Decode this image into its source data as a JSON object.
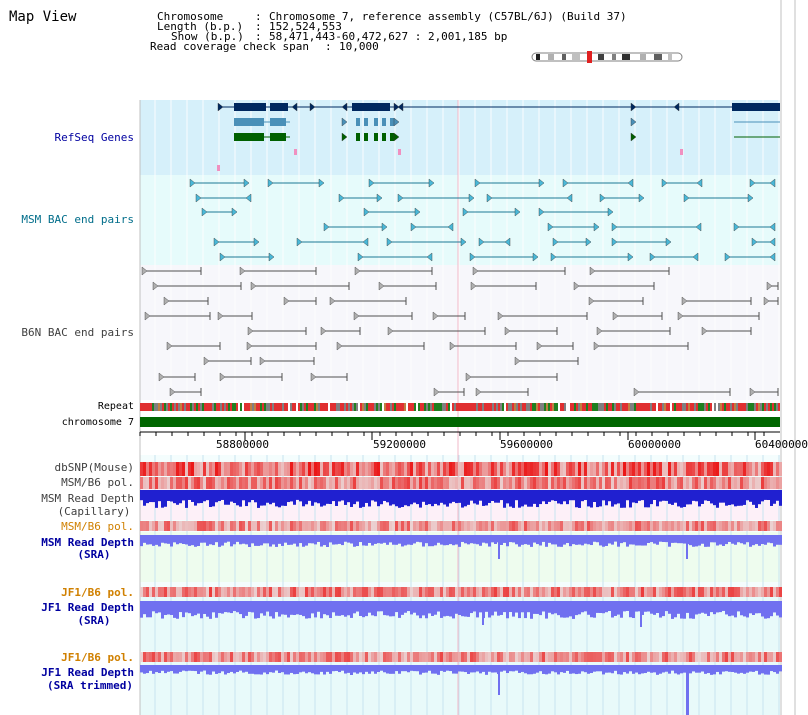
{
  "title": "Map View",
  "info": {
    "chromosome_label": "Chromosome",
    "chromosome_value": "Chromosome 7, reference assembly (C57BL/6J) (Build 37)",
    "length_label": "Length (b.p.)",
    "length_value": "152,524,553",
    "show_label": "Show (b.p.)",
    "show_value": "58,471,443-60,472,627 : 2,001,185 bp",
    "coverage_label": "Read coverage check span",
    "coverage_value": "10,000"
  },
  "tracks": {
    "refseq": "RefSeq Genes",
    "msm_bac": "MSM BAC end pairs",
    "b6n_bac": "B6N BAC end pairs",
    "repeat": "Repeat",
    "chromosome": "chromosome 7",
    "dbsnp": "dbSNP(Mouse)",
    "msm_b6_pol_1": "MSM/B6 pol.",
    "msm_depth_cap_1": "MSM Read Depth",
    "msm_depth_cap_2": "(Capillary)",
    "msm_b6_pol_2": "MSM/B6 pol.",
    "msm_depth_sra_1": "MSM Read Depth",
    "msm_depth_sra_2": "(SRA)",
    "jf1_b6_pol_1": "JF1/B6 pol.",
    "jf1_depth_sra_1": "JF1 Read Depth",
    "jf1_depth_sra_2": "(SRA)",
    "jf1_b6_pol_2": "JF1/B6 pol.",
    "jf1_depth_trim_1": "JF1 Read Depth",
    "jf1_depth_trim_2": "(SRA trimmed)"
  },
  "axis": {
    "ticks": [
      "58800000",
      "59200000",
      "59600000",
      "60000000",
      "60400000"
    ]
  },
  "colors": {
    "refseq_bg": "#d6f0fa",
    "msm_bg": "#e6fbfb",
    "b6n_bg": "#f7f7fb",
    "label_blue": "#0000a0",
    "label_teal": "#006d8a",
    "label_gray": "#404040",
    "label_orange": "#d08000",
    "gene_navy": "#00285f",
    "gene_blue": "#4a90b8",
    "gene_green": "#006000",
    "chrom_green": "#006600",
    "depth_blue": "#2020d0",
    "depth_light": "#7070f0"
  }
}
